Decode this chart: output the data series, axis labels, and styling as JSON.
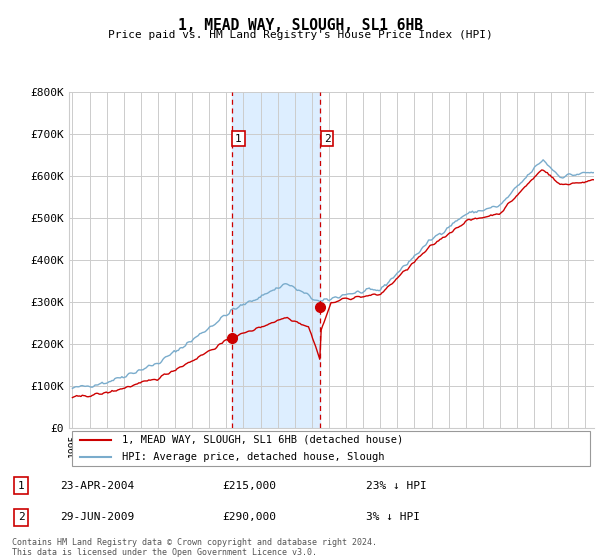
{
  "title": "1, MEAD WAY, SLOUGH, SL1 6HB",
  "subtitle": "Price paid vs. HM Land Registry's House Price Index (HPI)",
  "ylabel_ticks": [
    "£0",
    "£100K",
    "£200K",
    "£300K",
    "£400K",
    "£500K",
    "£600K",
    "£700K",
    "£800K"
  ],
  "ytick_values": [
    0,
    100000,
    200000,
    300000,
    400000,
    500000,
    600000,
    700000,
    800000
  ],
  "ylim": [
    0,
    800000
  ],
  "xlim_start": 1994.8,
  "xlim_end": 2025.5,
  "sale1_date": 2004.31,
  "sale1_price": 215000,
  "sale1_label": "23-APR-2004",
  "sale1_pct": "23% ↓ HPI",
  "sale2_date": 2009.49,
  "sale2_price": 290000,
  "sale2_label": "29-JUN-2009",
  "sale2_pct": "3% ↓ HPI",
  "legend_line1": "1, MEAD WAY, SLOUGH, SL1 6HB (detached house)",
  "legend_line2": "HPI: Average price, detached house, Slough",
  "red_color": "#cc0000",
  "blue_color": "#7aaccc",
  "shade_color": "#ddeeff",
  "footer": "Contains HM Land Registry data © Crown copyright and database right 2024.\nThis data is licensed under the Open Government Licence v3.0.",
  "grid_color": "#cccccc",
  "background_color": "#ffffff"
}
